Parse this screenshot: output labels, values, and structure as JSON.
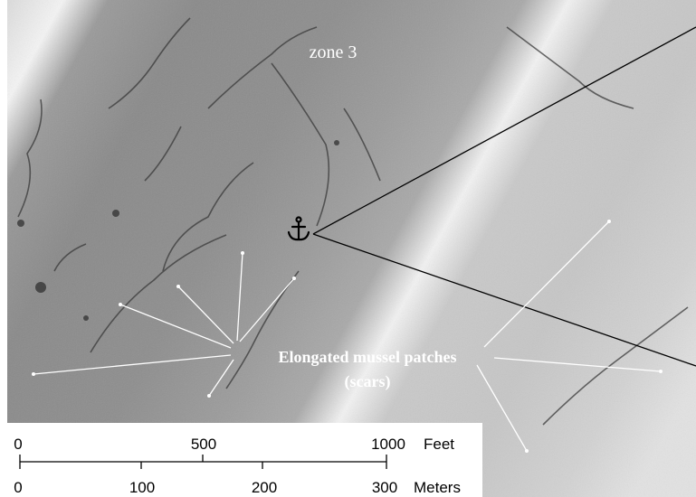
{
  "zone_label": "zone 3",
  "annotation": {
    "line1": "Elongated mussel patches",
    "line2": "(scars)"
  },
  "marker_icon": "anchor-icon",
  "scale_bar": {
    "feet": {
      "ticks": [
        "0",
        "500",
        "1000"
      ],
      "unit": "Feet"
    },
    "meters": {
      "ticks": [
        "0",
        "100",
        "200",
        "300"
      ],
      "unit": "Meters"
    }
  }
}
